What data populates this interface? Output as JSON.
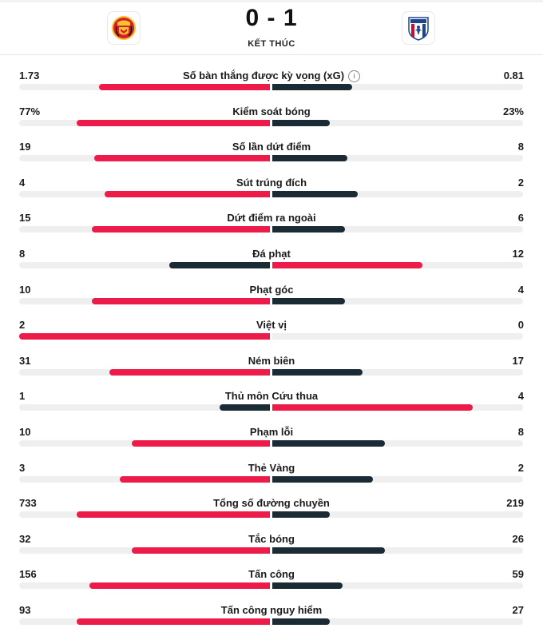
{
  "match": {
    "score": "0 - 1",
    "status": "KẾT THÚC",
    "home_badge": "manchester-united-crest-icon",
    "away_badge": "crystal-palace-crest-icon"
  },
  "colors": {
    "leader": "#ed1b49",
    "trailer": "#1b2b36",
    "track": "#efefef"
  },
  "stats": [
    {
      "label": "Số bàn thắng được kỳ vọng (xG)",
      "home": "1.73",
      "away": "0.81",
      "home_fill": 0.68,
      "away_fill": 0.32,
      "info": true
    },
    {
      "label": "Kiểm soát bóng",
      "home": "77%",
      "away": "23%",
      "home_fill": 0.77,
      "away_fill": 0.23
    },
    {
      "label": "Số lần dứt điểm",
      "home": "19",
      "away": "8",
      "home_fill": 0.7,
      "away_fill": 0.3
    },
    {
      "label": "Sút trúng đích",
      "home": "4",
      "away": "2",
      "home_fill": 0.66,
      "away_fill": 0.34
    },
    {
      "label": "Dứt điểm ra ngoài",
      "home": "15",
      "away": "6",
      "home_fill": 0.71,
      "away_fill": 0.29
    },
    {
      "label": "Đá phạt",
      "home": "8",
      "away": "12",
      "home_fill": 0.4,
      "away_fill": 0.6
    },
    {
      "label": "Phạt góc",
      "home": "10",
      "away": "4",
      "home_fill": 0.71,
      "away_fill": 0.29
    },
    {
      "label": "Việt vị",
      "home": "2",
      "away": "0",
      "home_fill": 1.0,
      "away_fill": 0.0
    },
    {
      "label": "Ném biên",
      "home": "31",
      "away": "17",
      "home_fill": 0.64,
      "away_fill": 0.36
    },
    {
      "label": "Thủ môn Cứu thua",
      "home": "1",
      "away": "4",
      "home_fill": 0.2,
      "away_fill": 0.8
    },
    {
      "label": "Phạm lỗi",
      "home": "10",
      "away": "8",
      "home_fill": 0.55,
      "away_fill": 0.45
    },
    {
      "label": "Thẻ Vàng",
      "home": "3",
      "away": "2",
      "home_fill": 0.6,
      "away_fill": 0.4
    },
    {
      "label": "Tổng số đường chuyền",
      "home": "733",
      "away": "219",
      "home_fill": 0.77,
      "away_fill": 0.23
    },
    {
      "label": "Tắc bóng",
      "home": "32",
      "away": "26",
      "home_fill": 0.55,
      "away_fill": 0.45
    },
    {
      "label": "Tấn công",
      "home": "156",
      "away": "59",
      "home_fill": 0.72,
      "away_fill": 0.28
    },
    {
      "label": "Tấn công nguy hiểm",
      "home": "93",
      "away": "27",
      "home_fill": 0.77,
      "away_fill": 0.23
    }
  ]
}
